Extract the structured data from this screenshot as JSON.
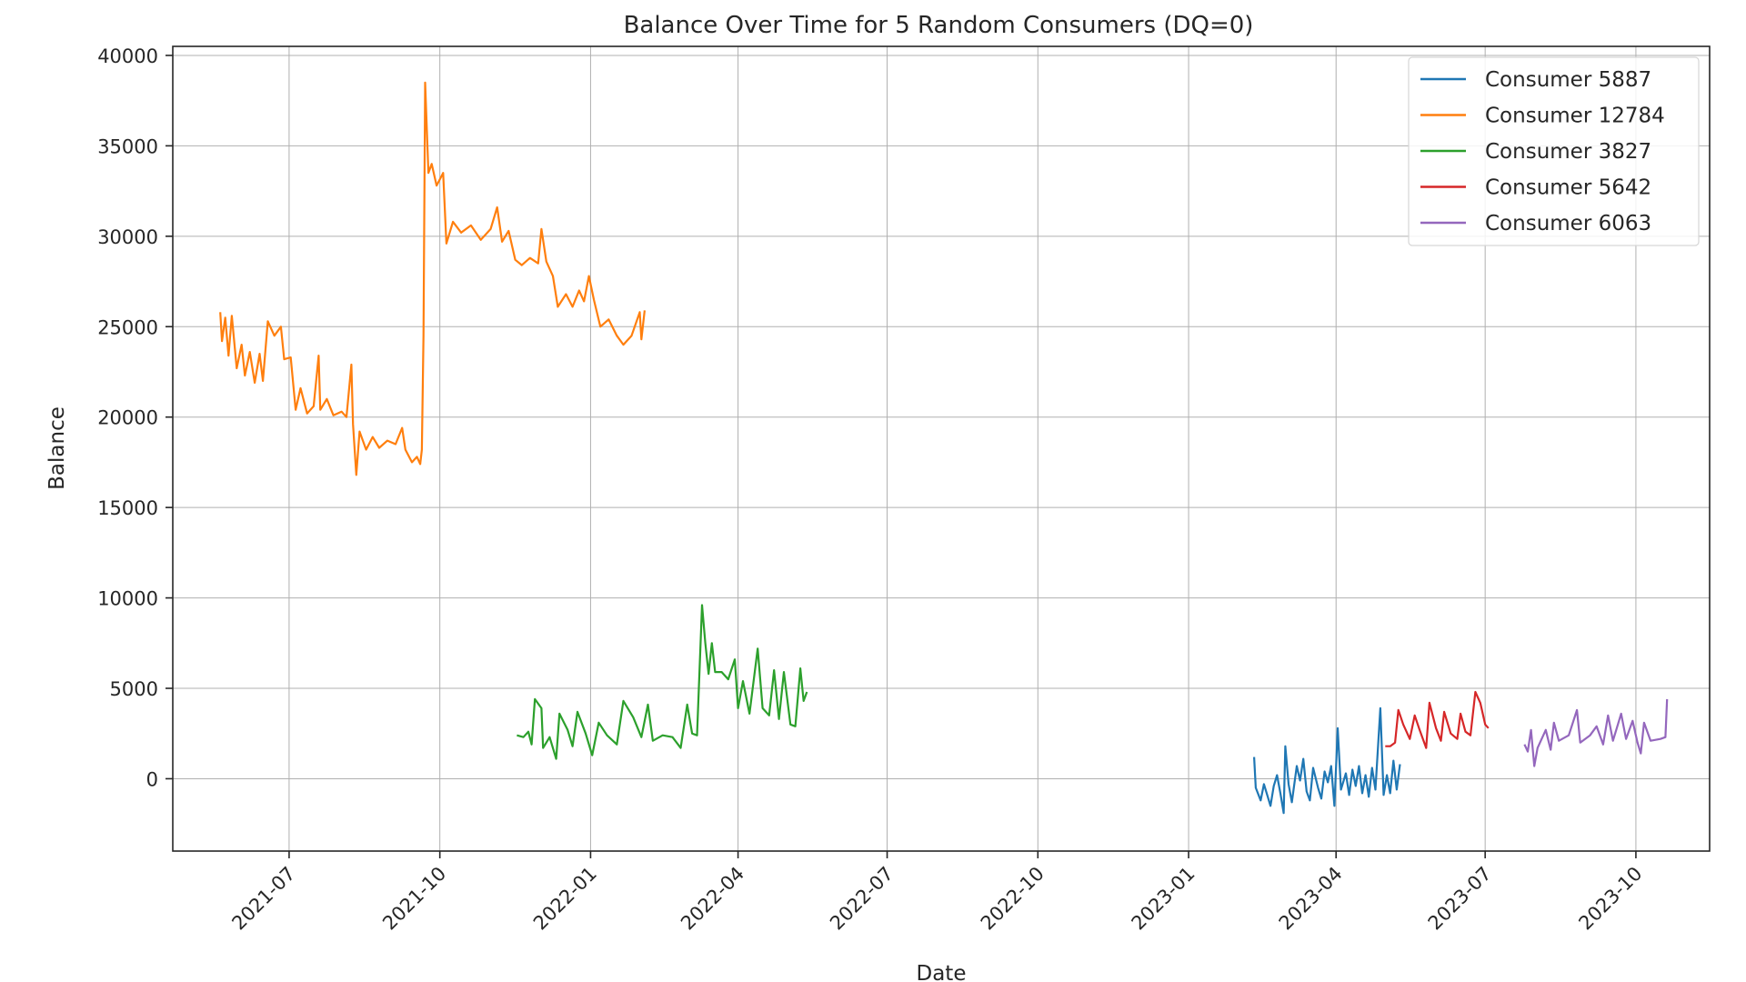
{
  "chart_data": {
    "type": "line",
    "title": "Balance Over Time for 5 Random Consumers (DQ=0)",
    "xlabel": "Date",
    "ylabel": "Balance",
    "xlim": [
      "2021-04-21",
      "2023-11-15"
    ],
    "ylim": [
      -4000,
      40500
    ],
    "x_ticks": [
      "2021-07",
      "2021-10",
      "2022-01",
      "2022-04",
      "2022-07",
      "2022-10",
      "2023-01",
      "2023-04",
      "2023-07",
      "2023-10"
    ],
    "x_tick_values": [
      "2021-07-01",
      "2021-10-01",
      "2022-01-01",
      "2022-04-01",
      "2022-07-01",
      "2022-10-01",
      "2023-01-01",
      "2023-04-01",
      "2023-07-01",
      "2023-10-01"
    ],
    "y_ticks": [
      0,
      5000,
      10000,
      15000,
      20000,
      25000,
      30000,
      35000,
      40000
    ],
    "y_tick_labels": [
      "0",
      "5000",
      "10000",
      "15000",
      "20000",
      "25000",
      "30000",
      "35000",
      "40000"
    ],
    "grid": true,
    "legend_position": "top-right",
    "series": [
      {
        "name": "Consumer 5887",
        "color": "#1f77b4",
        "points": [
          [
            "2023-02-10",
            1200
          ],
          [
            "2023-02-11",
            -500
          ],
          [
            "2023-02-14",
            -1200
          ],
          [
            "2023-02-16",
            -300
          ],
          [
            "2023-02-18",
            -900
          ],
          [
            "2023-02-20",
            -1500
          ],
          [
            "2023-02-22",
            -400
          ],
          [
            "2023-02-24",
            200
          ],
          [
            "2023-02-26",
            -800
          ],
          [
            "2023-02-28",
            -1900
          ],
          [
            "2023-03-01",
            1800
          ],
          [
            "2023-03-03",
            -300
          ],
          [
            "2023-03-05",
            -1300
          ],
          [
            "2023-03-08",
            700
          ],
          [
            "2023-03-10",
            -100
          ],
          [
            "2023-03-12",
            1100
          ],
          [
            "2023-03-14",
            -700
          ],
          [
            "2023-03-16",
            -1200
          ],
          [
            "2023-03-18",
            600
          ],
          [
            "2023-03-21",
            -500
          ],
          [
            "2023-03-23",
            -1100
          ],
          [
            "2023-03-25",
            400
          ],
          [
            "2023-03-27",
            -200
          ],
          [
            "2023-03-29",
            700
          ],
          [
            "2023-03-31",
            -1500
          ],
          [
            "2023-04-02",
            2800
          ],
          [
            "2023-04-04",
            -600
          ],
          [
            "2023-04-07",
            300
          ],
          [
            "2023-04-09",
            -900
          ],
          [
            "2023-04-11",
            500
          ],
          [
            "2023-04-13",
            -400
          ],
          [
            "2023-04-15",
            700
          ],
          [
            "2023-04-17",
            -800
          ],
          [
            "2023-04-19",
            200
          ],
          [
            "2023-04-21",
            -1000
          ],
          [
            "2023-04-23",
            600
          ],
          [
            "2023-04-25",
            -600
          ],
          [
            "2023-04-28",
            3900
          ],
          [
            "2023-04-30",
            -900
          ],
          [
            "2023-05-02",
            200
          ],
          [
            "2023-05-04",
            -800
          ],
          [
            "2023-05-06",
            1000
          ],
          [
            "2023-05-08",
            -600
          ],
          [
            "2023-05-10",
            800
          ]
        ]
      },
      {
        "name": "Consumer 12784",
        "color": "#ff7f0e",
        "points": [
          [
            "2021-05-20",
            25800
          ],
          [
            "2021-05-21",
            24200
          ],
          [
            "2021-05-23",
            25500
          ],
          [
            "2021-05-25",
            23400
          ],
          [
            "2021-05-27",
            25600
          ],
          [
            "2021-05-30",
            22700
          ],
          [
            "2021-06-02",
            24000
          ],
          [
            "2021-06-04",
            22300
          ],
          [
            "2021-06-07",
            23600
          ],
          [
            "2021-06-10",
            21900
          ],
          [
            "2021-06-13",
            23500
          ],
          [
            "2021-06-15",
            22000
          ],
          [
            "2021-06-18",
            25300
          ],
          [
            "2021-06-22",
            24500
          ],
          [
            "2021-06-26",
            25000
          ],
          [
            "2021-06-28",
            23200
          ],
          [
            "2021-07-02",
            23300
          ],
          [
            "2021-07-05",
            20400
          ],
          [
            "2021-07-08",
            21600
          ],
          [
            "2021-07-12",
            20200
          ],
          [
            "2021-07-16",
            20600
          ],
          [
            "2021-07-19",
            23400
          ],
          [
            "2021-07-20",
            20400
          ],
          [
            "2021-07-24",
            21000
          ],
          [
            "2021-07-28",
            20100
          ],
          [
            "2021-08-02",
            20300
          ],
          [
            "2021-08-05",
            20000
          ],
          [
            "2021-08-08",
            22900
          ],
          [
            "2021-08-09",
            19600
          ],
          [
            "2021-08-11",
            16800
          ],
          [
            "2021-08-13",
            19200
          ],
          [
            "2021-08-17",
            18200
          ],
          [
            "2021-08-21",
            18900
          ],
          [
            "2021-08-25",
            18300
          ],
          [
            "2021-08-30",
            18700
          ],
          [
            "2021-09-04",
            18500
          ],
          [
            "2021-09-08",
            19400
          ],
          [
            "2021-09-10",
            18200
          ],
          [
            "2021-09-14",
            17500
          ],
          [
            "2021-09-17",
            17800
          ],
          [
            "2021-09-19",
            17400
          ],
          [
            "2021-09-20",
            18200
          ],
          [
            "2021-09-21",
            24500
          ],
          [
            "2021-09-22",
            38500
          ],
          [
            "2021-09-24",
            33500
          ],
          [
            "2021-09-26",
            34000
          ],
          [
            "2021-09-29",
            32800
          ],
          [
            "2021-10-03",
            33500
          ],
          [
            "2021-10-05",
            29600
          ],
          [
            "2021-10-09",
            30800
          ],
          [
            "2021-10-14",
            30200
          ],
          [
            "2021-10-20",
            30600
          ],
          [
            "2021-10-26",
            29800
          ],
          [
            "2021-11-01",
            30400
          ],
          [
            "2021-11-05",
            31600
          ],
          [
            "2021-11-08",
            29700
          ],
          [
            "2021-11-12",
            30300
          ],
          [
            "2021-11-16",
            28700
          ],
          [
            "2021-11-20",
            28400
          ],
          [
            "2021-11-25",
            28800
          ],
          [
            "2021-11-30",
            28500
          ],
          [
            "2021-12-02",
            30400
          ],
          [
            "2021-12-05",
            28600
          ],
          [
            "2021-12-09",
            27800
          ],
          [
            "2021-12-12",
            26100
          ],
          [
            "2021-12-17",
            26800
          ],
          [
            "2021-12-21",
            26100
          ],
          [
            "2021-12-25",
            27000
          ],
          [
            "2021-12-28",
            26400
          ],
          [
            "2021-12-31",
            27800
          ],
          [
            "2022-01-03",
            26500
          ],
          [
            "2022-01-07",
            25000
          ],
          [
            "2022-01-12",
            25400
          ],
          [
            "2022-01-17",
            24500
          ],
          [
            "2022-01-21",
            24000
          ],
          [
            "2022-01-26",
            24500
          ],
          [
            "2022-01-31",
            25800
          ],
          [
            "2022-02-01",
            24300
          ],
          [
            "2022-02-03",
            25900
          ]
        ]
      },
      {
        "name": "Consumer 3827",
        "color": "#2ca02c",
        "points": [
          [
            "2021-11-17",
            2400
          ],
          [
            "2021-11-21",
            2300
          ],
          [
            "2021-11-24",
            2600
          ],
          [
            "2021-11-26",
            1900
          ],
          [
            "2021-11-28",
            4400
          ],
          [
            "2021-12-02",
            3900
          ],
          [
            "2021-12-03",
            1700
          ],
          [
            "2021-12-07",
            2300
          ],
          [
            "2021-12-11",
            1100
          ],
          [
            "2021-12-13",
            3600
          ],
          [
            "2021-12-18",
            2700
          ],
          [
            "2021-12-21",
            1800
          ],
          [
            "2021-12-24",
            3700
          ],
          [
            "2021-12-29",
            2500
          ],
          [
            "2022-01-02",
            1300
          ],
          [
            "2022-01-06",
            3100
          ],
          [
            "2022-01-11",
            2400
          ],
          [
            "2022-01-17",
            1900
          ],
          [
            "2022-01-21",
            4300
          ],
          [
            "2022-01-27",
            3400
          ],
          [
            "2022-02-01",
            2300
          ],
          [
            "2022-02-05",
            4100
          ],
          [
            "2022-02-08",
            2100
          ],
          [
            "2022-02-14",
            2400
          ],
          [
            "2022-02-20",
            2300
          ],
          [
            "2022-02-25",
            1700
          ],
          [
            "2022-03-01",
            4100
          ],
          [
            "2022-03-04",
            2500
          ],
          [
            "2022-03-07",
            2400
          ],
          [
            "2022-03-10",
            9600
          ],
          [
            "2022-03-12",
            7500
          ],
          [
            "2022-03-14",
            5800
          ],
          [
            "2022-03-16",
            7500
          ],
          [
            "2022-03-18",
            5900
          ],
          [
            "2022-03-22",
            5900
          ],
          [
            "2022-03-26",
            5500
          ],
          [
            "2022-03-30",
            6600
          ],
          [
            "2022-04-01",
            3900
          ],
          [
            "2022-04-04",
            5400
          ],
          [
            "2022-04-08",
            3600
          ],
          [
            "2022-04-13",
            7200
          ],
          [
            "2022-04-16",
            3900
          ],
          [
            "2022-04-20",
            3500
          ],
          [
            "2022-04-23",
            6000
          ],
          [
            "2022-04-26",
            3300
          ],
          [
            "2022-04-29",
            5900
          ],
          [
            "2022-05-03",
            3000
          ],
          [
            "2022-05-06",
            2900
          ],
          [
            "2022-05-09",
            6100
          ],
          [
            "2022-05-11",
            4300
          ],
          [
            "2022-05-13",
            4800
          ]
        ]
      },
      {
        "name": "Consumer 5642",
        "color": "#d62728",
        "points": [
          [
            "2023-05-01",
            1800
          ],
          [
            "2023-05-04",
            1800
          ],
          [
            "2023-05-07",
            2000
          ],
          [
            "2023-05-09",
            3800
          ],
          [
            "2023-05-12",
            3000
          ],
          [
            "2023-05-16",
            2200
          ],
          [
            "2023-05-19",
            3500
          ],
          [
            "2023-05-22",
            2700
          ],
          [
            "2023-05-26",
            1700
          ],
          [
            "2023-05-28",
            4200
          ],
          [
            "2023-06-01",
            2800
          ],
          [
            "2023-06-04",
            2100
          ],
          [
            "2023-06-06",
            3700
          ],
          [
            "2023-06-10",
            2500
          ],
          [
            "2023-06-14",
            2200
          ],
          [
            "2023-06-16",
            3600
          ],
          [
            "2023-06-19",
            2600
          ],
          [
            "2023-06-22",
            2400
          ],
          [
            "2023-06-25",
            4800
          ],
          [
            "2023-06-28",
            4200
          ],
          [
            "2023-07-01",
            3000
          ],
          [
            "2023-07-03",
            2800
          ]
        ]
      },
      {
        "name": "Consumer 6063",
        "color": "#9467bd",
        "points": [
          [
            "2023-07-25",
            1900
          ],
          [
            "2023-07-27",
            1500
          ],
          [
            "2023-07-29",
            2700
          ],
          [
            "2023-07-31",
            700
          ],
          [
            "2023-08-02",
            1700
          ],
          [
            "2023-08-07",
            2700
          ],
          [
            "2023-08-10",
            1600
          ],
          [
            "2023-08-12",
            3100
          ],
          [
            "2023-08-15",
            2100
          ],
          [
            "2023-08-21",
            2400
          ],
          [
            "2023-08-26",
            3800
          ],
          [
            "2023-08-28",
            2000
          ],
          [
            "2023-09-03",
            2400
          ],
          [
            "2023-09-07",
            2900
          ],
          [
            "2023-09-11",
            1900
          ],
          [
            "2023-09-14",
            3500
          ],
          [
            "2023-09-17",
            2100
          ],
          [
            "2023-09-22",
            3600
          ],
          [
            "2023-09-25",
            2200
          ],
          [
            "2023-09-29",
            3200
          ],
          [
            "2023-10-02",
            2000
          ],
          [
            "2023-10-04",
            1400
          ],
          [
            "2023-10-06",
            3100
          ],
          [
            "2023-10-10",
            2100
          ],
          [
            "2023-10-16",
            2200
          ],
          [
            "2023-10-19",
            2300
          ],
          [
            "2023-10-20",
            4400
          ]
        ]
      }
    ]
  }
}
